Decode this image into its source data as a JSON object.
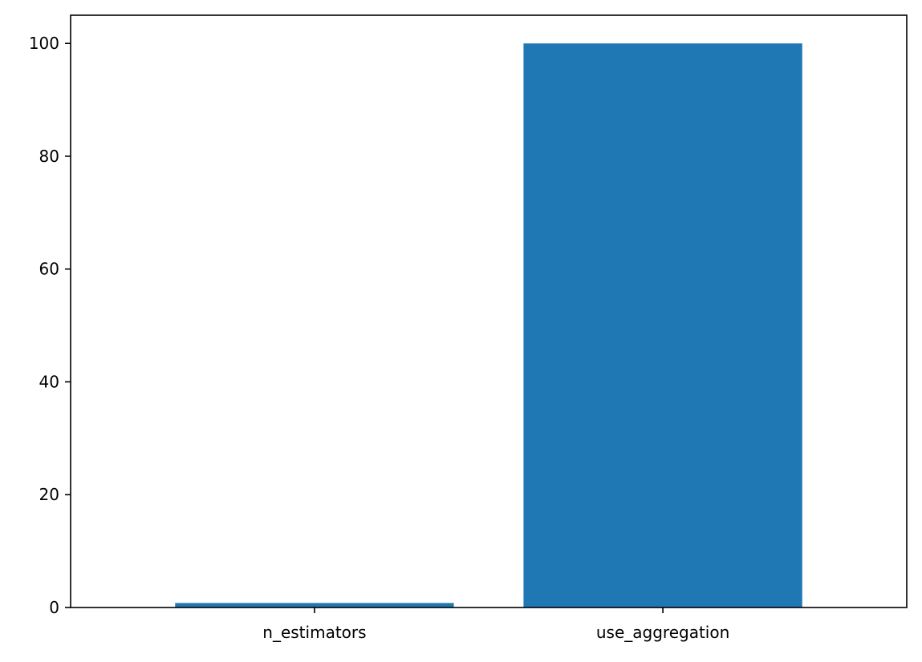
{
  "chart_data": {
    "type": "bar",
    "categories": [
      "n_estimators",
      "use_aggregation"
    ],
    "values": [
      0.8,
      100
    ],
    "title": "",
    "xlabel": "",
    "ylabel": "",
    "ylim": [
      0,
      105
    ],
    "yticks": [
      0,
      20,
      40,
      60,
      80,
      100
    ],
    "grid": false,
    "legend": "none",
    "bar_color": "#1f77b4",
    "axis_color": "#000000",
    "background": "#ffffff"
  }
}
